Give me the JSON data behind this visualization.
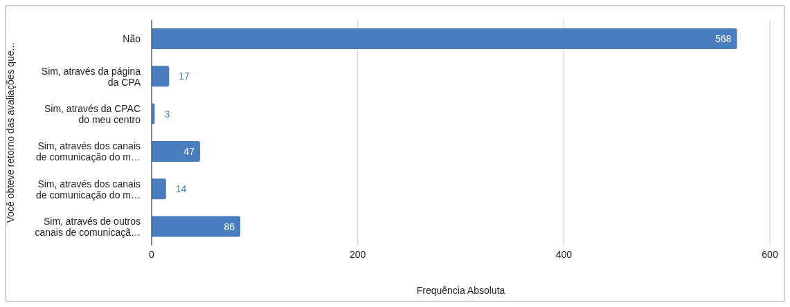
{
  "chart_data": {
    "type": "bar",
    "orientation": "horizontal",
    "xlabel": "Frequência Absoluta",
    "ylabel": "Você obteve retorno das avaliações que...",
    "categories": [
      "Não",
      "Sim, através da página\nda CPA",
      "Sim, através da CPAC\ndo meu centro",
      "Sim, através dos canais\nde comunicação do m…",
      "Sim, através dos canais\nde comunicação do m…",
      "Sim, através de outros\ncanais de comunicaçã…"
    ],
    "values": [
      568,
      17,
      3,
      47,
      14,
      86
    ],
    "color": "#4a7cc0",
    "xlim": [
      0,
      600
    ],
    "xticks": [
      0,
      200,
      400,
      600
    ],
    "grid": "x",
    "data_labels": true
  }
}
